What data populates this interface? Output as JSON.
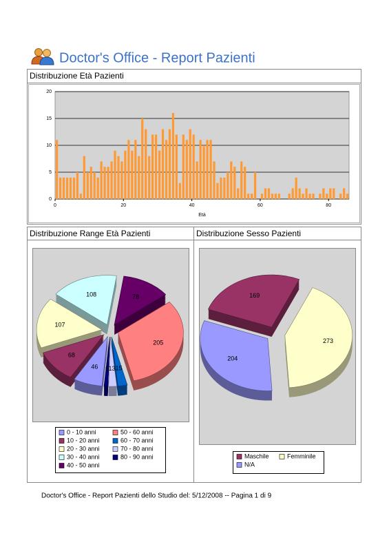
{
  "header": {
    "title": "Doctor's Office - Report Pazienti"
  },
  "footer": {
    "text": "Doctor's Office - Report Pazienti dello Studio del: 5/12/2008 -- Pagina 1 di 9"
  },
  "chart_data": [
    {
      "type": "bar",
      "title": "Distribuzione Età Pazienti",
      "x_label": "Età",
      "color": "#ff9933",
      "grid": true,
      "x": [
        0,
        1,
        2,
        3,
        4,
        5,
        6,
        7,
        8,
        9,
        10,
        11,
        12,
        13,
        14,
        15,
        16,
        17,
        18,
        19,
        20,
        21,
        22,
        23,
        24,
        25,
        26,
        27,
        28,
        29,
        30,
        31,
        32,
        33,
        34,
        35,
        36,
        37,
        38,
        39,
        40,
        41,
        42,
        43,
        44,
        45,
        46,
        47,
        48,
        49,
        50,
        51,
        52,
        53,
        54,
        55,
        56,
        57,
        58,
        59,
        60,
        61,
        62,
        63,
        64,
        65,
        66,
        67,
        68,
        69,
        70,
        71,
        72,
        73,
        74,
        75,
        76,
        77,
        78,
        79,
        80,
        81,
        82,
        83,
        84,
        85
      ],
      "values": [
        11,
        4,
        4,
        4,
        4,
        4,
        5,
        1,
        8,
        5,
        6,
        5,
        4,
        7,
        6,
        6,
        7,
        9,
        8,
        7,
        9,
        11,
        9,
        11,
        8,
        15,
        13,
        8,
        12,
        12,
        9,
        13,
        11,
        13,
        16,
        12,
        3,
        12,
        11,
        13,
        12,
        7,
        11,
        10,
        11,
        11,
        7,
        3,
        4,
        4,
        5,
        7,
        6,
        2,
        7,
        6,
        1,
        1,
        5,
        0,
        1,
        2,
        2,
        1,
        1,
        1,
        0,
        0,
        1,
        2,
        4,
        2,
        1,
        2,
        1,
        1,
        0,
        1,
        2,
        1,
        2,
        2,
        0,
        1,
        2,
        1
      ],
      "xlim": [
        0,
        86
      ],
      "xticks": [
        0,
        20,
        40,
        60,
        80
      ],
      "ylim": [
        0,
        20
      ],
      "yticks": [
        0,
        5,
        10,
        15,
        20
      ]
    },
    {
      "type": "pie",
      "title": "Distribuzione Range Età Pazienti",
      "legend": "bottom",
      "categories": [
        "0 - 10 anni",
        "10 - 20 anni",
        "20 - 30 anni",
        "30 - 40 anni",
        "40 - 50 anni",
        "50 - 60 anni",
        "60 - 70 anni",
        "70 - 80 anni",
        "80 - 90 anni"
      ],
      "values": [
        46,
        68,
        107,
        108,
        78,
        205,
        15,
        13,
        6
      ],
      "colors": [
        "#9999ff",
        "#993366",
        "#ffffcc",
        "#ccffff",
        "#660066",
        "#ff8080",
        "#0066cc",
        "#ccccff",
        "#000080"
      ]
    },
    {
      "type": "pie",
      "title": "Distribuzione Sesso Pazienti",
      "legend": "bottom",
      "categories": [
        "Maschile",
        "Femminile",
        "N/A"
      ],
      "values": [
        169,
        273,
        204
      ],
      "colors": [
        "#993366",
        "#ffffcc",
        "#9999ff"
      ]
    }
  ]
}
